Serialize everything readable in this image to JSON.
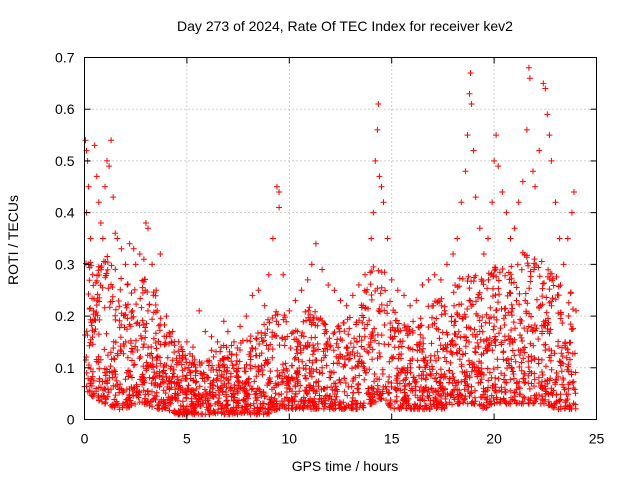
{
  "chart_data": {
    "type": "scatter",
    "title": "Day 273 of 2024, Rate Of TEC Index for receiver kev2",
    "xlabel": "GPS time / hours",
    "ylabel": "ROTI / TECUs",
    "xlim": [
      0,
      25
    ],
    "ylim": [
      0,
      0.7
    ],
    "xticks": [
      0,
      5,
      10,
      15,
      20,
      25
    ],
    "yticks": [
      0,
      0.1,
      0.2,
      0.3,
      0.4,
      0.5,
      0.6,
      0.7
    ],
    "xtick_labels": [
      "0",
      "5",
      "10",
      "15",
      "20",
      "25"
    ],
    "ytick_labels": [
      "0",
      "0.1",
      "0.2",
      "0.3",
      "0.4",
      "0.5",
      "0.6",
      "0.7"
    ],
    "grid": true,
    "marker": "+",
    "color": "#ff0000",
    "series": [
      {
        "name": "ROTI",
        "points": [
          [
            0.05,
            0.54
          ],
          [
            0.1,
            0.52
          ],
          [
            0.15,
            0.5
          ],
          [
            0.2,
            0.45
          ],
          [
            0.1,
            0.4
          ],
          [
            0.3,
            0.35
          ],
          [
            0.2,
            0.3
          ],
          [
            0.4,
            0.28
          ],
          [
            0.5,
            0.53
          ],
          [
            0.6,
            0.47
          ],
          [
            0.7,
            0.42
          ],
          [
            0.8,
            0.38
          ],
          [
            0.9,
            0.35
          ],
          [
            1.0,
            0.45
          ],
          [
            1.1,
            0.5
          ],
          [
            1.2,
            0.49
          ],
          [
            1.3,
            0.54
          ],
          [
            1.4,
            0.43
          ],
          [
            1.5,
            0.36
          ],
          [
            1.6,
            0.35
          ],
          [
            1.8,
            0.33
          ],
          [
            2.0,
            0.3
          ],
          [
            2.2,
            0.34
          ],
          [
            2.4,
            0.33
          ],
          [
            2.5,
            0.3
          ],
          [
            2.7,
            0.32
          ],
          [
            2.9,
            0.31
          ],
          [
            3.0,
            0.38
          ],
          [
            3.1,
            0.37
          ],
          [
            3.3,
            0.3
          ],
          [
            3.5,
            0.25
          ],
          [
            3.7,
            0.32
          ],
          [
            4.0,
            0.2
          ],
          [
            4.3,
            0.17
          ],
          [
            4.6,
            0.15
          ],
          [
            5.0,
            0.15
          ],
          [
            5.3,
            0.14
          ],
          [
            5.6,
            0.21
          ],
          [
            5.9,
            0.17
          ],
          [
            6.2,
            0.16
          ],
          [
            6.5,
            0.15
          ],
          [
            6.8,
            0.19
          ],
          [
            7.0,
            0.17
          ],
          [
            7.3,
            0.15
          ],
          [
            7.6,
            0.18
          ],
          [
            7.9,
            0.2
          ],
          [
            8.2,
            0.24
          ],
          [
            8.5,
            0.25
          ],
          [
            8.8,
            0.22
          ],
          [
            9.0,
            0.28
          ],
          [
            9.2,
            0.35
          ],
          [
            9.4,
            0.45
          ],
          [
            9.5,
            0.44
          ],
          [
            9.5,
            0.41
          ],
          [
            9.7,
            0.28
          ],
          [
            10.0,
            0.21
          ],
          [
            10.3,
            0.23
          ],
          [
            10.6,
            0.25
          ],
          [
            10.9,
            0.27
          ],
          [
            11.1,
            0.3
          ],
          [
            11.3,
            0.34
          ],
          [
            11.6,
            0.29
          ],
          [
            11.9,
            0.26
          ],
          [
            12.2,
            0.25
          ],
          [
            12.5,
            0.23
          ],
          [
            12.8,
            0.22
          ],
          [
            13.1,
            0.24
          ],
          [
            13.4,
            0.26
          ],
          [
            13.7,
            0.28
          ],
          [
            14.0,
            0.35
          ],
          [
            14.1,
            0.4
          ],
          [
            14.2,
            0.5
          ],
          [
            14.3,
            0.56
          ],
          [
            14.35,
            0.61
          ],
          [
            14.4,
            0.47
          ],
          [
            14.5,
            0.45
          ],
          [
            14.6,
            0.42
          ],
          [
            14.8,
            0.35
          ],
          [
            15.0,
            0.27
          ],
          [
            15.3,
            0.25
          ],
          [
            15.6,
            0.24
          ],
          [
            15.9,
            0.22
          ],
          [
            16.2,
            0.23
          ],
          [
            16.5,
            0.26
          ],
          [
            16.8,
            0.27
          ],
          [
            17.1,
            0.28
          ],
          [
            17.4,
            0.27
          ],
          [
            17.7,
            0.3
          ],
          [
            18.0,
            0.32
          ],
          [
            18.2,
            0.35
          ],
          [
            18.4,
            0.42
          ],
          [
            18.6,
            0.48
          ],
          [
            18.7,
            0.55
          ],
          [
            18.8,
            0.63
          ],
          [
            18.85,
            0.67
          ],
          [
            18.9,
            0.61
          ],
          [
            19.0,
            0.52
          ],
          [
            19.1,
            0.43
          ],
          [
            19.3,
            0.37
          ],
          [
            19.5,
            0.32
          ],
          [
            19.7,
            0.35
          ],
          [
            19.9,
            0.42
          ],
          [
            20.0,
            0.5
          ],
          [
            20.1,
            0.55
          ],
          [
            20.2,
            0.49
          ],
          [
            20.4,
            0.44
          ],
          [
            20.6,
            0.4
          ],
          [
            20.8,
            0.35
          ],
          [
            21.0,
            0.37
          ],
          [
            21.2,
            0.42
          ],
          [
            21.4,
            0.46
          ],
          [
            21.6,
            0.56
          ],
          [
            21.7,
            0.68
          ],
          [
            21.75,
            0.66
          ],
          [
            21.9,
            0.48
          ],
          [
            22.0,
            0.45
          ],
          [
            22.2,
            0.52
          ],
          [
            22.4,
            0.65
          ],
          [
            22.5,
            0.64
          ],
          [
            22.6,
            0.59
          ],
          [
            22.7,
            0.55
          ],
          [
            22.8,
            0.5
          ],
          [
            23.0,
            0.42
          ],
          [
            23.2,
            0.35
          ],
          [
            23.4,
            0.3
          ],
          [
            23.6,
            0.35
          ],
          [
            23.8,
            0.4
          ],
          [
            23.9,
            0.44
          ]
        ],
        "envelope": {
          "hours": [
            0,
            0.5,
            1,
            1.5,
            2,
            2.5,
            3,
            3.5,
            4,
            4.5,
            5,
            5.5,
            6,
            6.5,
            7,
            7.5,
            8,
            8.5,
            9,
            9.5,
            10,
            10.5,
            11,
            11.5,
            12,
            12.5,
            13,
            13.5,
            14,
            14.5,
            15,
            15.5,
            16,
            16.5,
            17,
            17.5,
            18,
            18.5,
            19,
            19.5,
            20,
            20.5,
            21,
            21.5,
            22,
            22.5,
            23,
            23.5,
            24
          ],
          "upper": [
            0.32,
            0.3,
            0.32,
            0.3,
            0.27,
            0.25,
            0.28,
            0.24,
            0.18,
            0.15,
            0.13,
            0.12,
            0.13,
            0.14,
            0.15,
            0.15,
            0.16,
            0.17,
            0.2,
            0.22,
            0.19,
            0.2,
            0.22,
            0.2,
            0.18,
            0.19,
            0.2,
            0.22,
            0.3,
            0.32,
            0.22,
            0.2,
            0.19,
            0.21,
            0.23,
            0.24,
            0.26,
            0.3,
            0.3,
            0.27,
            0.3,
            0.29,
            0.3,
            0.33,
            0.32,
            0.3,
            0.28,
            0.25,
            0.25
          ],
          "lower": [
            0.06,
            0.04,
            0.03,
            0.02,
            0.02,
            0.03,
            0.03,
            0.02,
            0.02,
            0.01,
            0.01,
            0.01,
            0.01,
            0.01,
            0.01,
            0.01,
            0.01,
            0.01,
            0.01,
            0.02,
            0.02,
            0.02,
            0.02,
            0.02,
            0.02,
            0.02,
            0.02,
            0.02,
            0.03,
            0.04,
            0.02,
            0.02,
            0.02,
            0.02,
            0.02,
            0.02,
            0.03,
            0.03,
            0.03,
            0.02,
            0.03,
            0.03,
            0.03,
            0.03,
            0.03,
            0.03,
            0.02,
            0.02,
            0.02
          ],
          "dense_count": 2600
        }
      }
    ]
  }
}
